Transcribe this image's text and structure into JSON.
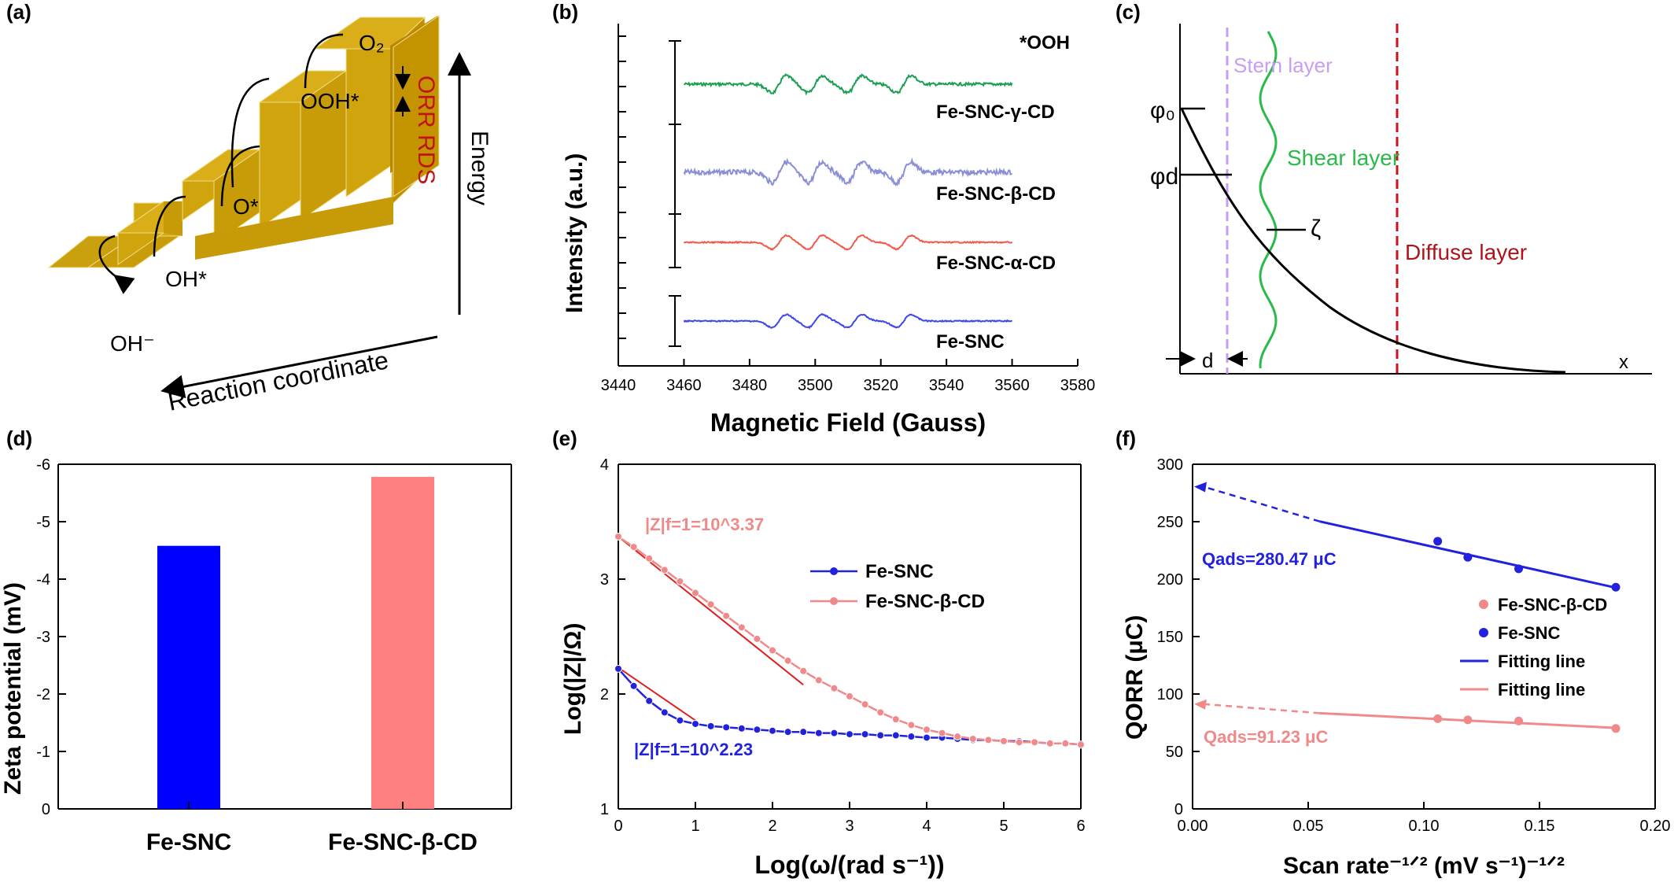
{
  "panel_labels": [
    "(a)",
    "(b)",
    "(c)",
    "(d)",
    "(e)",
    "(f)"
  ],
  "panel_a": {
    "steps": [
      "OH⁻",
      "OH*",
      "O*",
      "OOH*",
      "O₂"
    ],
    "rds_label": "ORR RDS",
    "energy_label": "Energy",
    "xlabel": "Reaction coordinate"
  },
  "panel_c": {
    "stern": "Stern layer",
    "shear": "Shear layer",
    "diffuse": "Diffuse layer",
    "phi0": "φ₀",
    "phid": "φd",
    "zeta": "ζ",
    "d": "d",
    "x": "x"
  },
  "panel_e": {
    "ann1": "|Z|f=1=10^3.37",
    "ann2": "|Z|f=1=10^2.23"
  },
  "panel_f": {
    "ann1": "Qads=280.47 μC",
    "ann2": "Qads=91.23 μC"
  },
  "chart_data": [
    {
      "type": "line",
      "panel": "(b)",
      "title": "",
      "xlabel": "Magnetic Field (Gauss)",
      "ylabel": "Intensity (a.u.)",
      "xlim": [
        3440,
        3580
      ],
      "xticks": [
        3440,
        3460,
        3480,
        3500,
        3520,
        3540,
        3560,
        3580
      ],
      "annotation": "*OOH",
      "series": [
        {
          "name": "Fe-SNC-γ-CD",
          "color": "#1aa050",
          "amplitude": 1.0,
          "noise": 0.12
        },
        {
          "name": "Fe-SNC-β-CD",
          "color": "#8a8ed6",
          "amplitude": 1.2,
          "noise": 0.2
        },
        {
          "name": "Fe-SNC-α-CD",
          "color": "#f05a4a",
          "amplitude": 0.8,
          "noise": 0.05
        },
        {
          "name": "Fe-SNC",
          "color": "#3d49e6",
          "amplitude": 0.75,
          "noise": 0.05
        }
      ]
    },
    {
      "type": "bar",
      "panel": "(d)",
      "title": "",
      "categories": [
        "Fe-SNC",
        "Fe-SNC-β-CD"
      ],
      "values": [
        -4.58,
        -5.78
      ],
      "colors": [
        "#0000ff",
        "#ff8080"
      ],
      "xlabel": "",
      "ylabel": "Zeta potential (mV)",
      "ylim": [
        0,
        -6
      ],
      "yticks": [
        "0",
        "-1",
        "-2",
        "-3",
        "-4",
        "-5",
        "-6"
      ]
    },
    {
      "type": "line",
      "panel": "(e)",
      "title": "",
      "xlabel": "Log(ω/(rad s⁻¹))",
      "ylabel": "Log(|Z|/Ω)",
      "xlim": [
        0,
        6
      ],
      "ylim": [
        1,
        4
      ],
      "xticks": [
        0,
        1,
        2,
        3,
        4,
        5,
        6
      ],
      "yticks": [
        1,
        2,
        3,
        4
      ],
      "series": [
        {
          "name": "Fe-SNC",
          "color": "#2222dd",
          "x": [
            0,
            0.2,
            0.4,
            0.6,
            0.8,
            1.0,
            1.2,
            1.4,
            1.6,
            1.8,
            2.0,
            2.2,
            2.4,
            2.6,
            2.8,
            3.0,
            3.2,
            3.4,
            3.6,
            3.8,
            4.0,
            4.2,
            4.4,
            4.6,
            4.8,
            5.0,
            5.2,
            5.4,
            5.6,
            5.8,
            6.0
          ],
          "y": [
            2.22,
            2.07,
            1.94,
            1.84,
            1.77,
            1.74,
            1.72,
            1.71,
            1.7,
            1.69,
            1.68,
            1.67,
            1.67,
            1.66,
            1.66,
            1.65,
            1.65,
            1.64,
            1.64,
            1.63,
            1.62,
            1.62,
            1.61,
            1.6,
            1.6,
            1.59,
            1.59,
            1.58,
            1.57,
            1.57,
            1.56
          ]
        },
        {
          "name": "Fe-SNC-β-CD",
          "color": "#f08a8a",
          "x": [
            0,
            0.2,
            0.4,
            0.6,
            0.8,
            1.0,
            1.2,
            1.4,
            1.6,
            1.8,
            2.0,
            2.2,
            2.4,
            2.6,
            2.8,
            3.0,
            3.2,
            3.4,
            3.6,
            3.8,
            4.0,
            4.2,
            4.4,
            4.6,
            4.8,
            5.0,
            5.2,
            5.4,
            5.6,
            5.8,
            6.0
          ],
          "y": [
            3.37,
            3.28,
            3.18,
            3.08,
            2.98,
            2.88,
            2.78,
            2.68,
            2.58,
            2.48,
            2.38,
            2.29,
            2.2,
            2.12,
            2.05,
            1.98,
            1.91,
            1.84,
            1.78,
            1.73,
            1.69,
            1.66,
            1.63,
            1.61,
            1.6,
            1.59,
            1.58,
            1.58,
            1.57,
            1.57,
            1.56
          ]
        }
      ],
      "fits": [
        {
          "x": [
            0,
            2.4
          ],
          "y": [
            3.37,
            2.08
          ],
          "color": "#e02020"
        },
        {
          "x": [
            0,
            1.0
          ],
          "y": [
            2.23,
            1.77
          ],
          "color": "#e02020"
        }
      ]
    },
    {
      "type": "scatter",
      "panel": "(f)",
      "title": "",
      "xlabel": "Scan rate⁻¹ᐟ² (mV s⁻¹)⁻¹ᐟ²",
      "ylabel": "QORR (μC)",
      "xlim": [
        0,
        0.2
      ],
      "ylim": [
        0,
        300
      ],
      "xticks": [
        "0.00",
        "0.05",
        "0.10",
        "0.15",
        "0.20"
      ],
      "yticks": [
        0,
        50,
        100,
        150,
        200,
        250,
        300
      ],
      "series": [
        {
          "name": "Fe-SNC-β-CD",
          "color": "#f08a8a",
          "x": [
            0.106,
            0.119,
            0.141,
            0.183
          ],
          "y": [
            78.5,
            77.5,
            76.5,
            70
          ]
        },
        {
          "name": "Fe-SNC",
          "color": "#2222dd",
          "x": [
            0.106,
            0.119,
            0.141,
            0.183
          ],
          "y": [
            233,
            219,
            209,
            193
          ]
        }
      ],
      "fits": [
        {
          "name": "Fitting line",
          "color": "#2222dd",
          "intercept": 280.47,
          "x": [
            0.055,
            0.183
          ],
          "y": [
            250.2,
            192.5
          ]
        },
        {
          "name": "Fitting line",
          "color": "#f08a8a",
          "intercept": 91.23,
          "x": [
            0.055,
            0.183
          ],
          "y": [
            83.3,
            70.5
          ]
        }
      ]
    }
  ]
}
